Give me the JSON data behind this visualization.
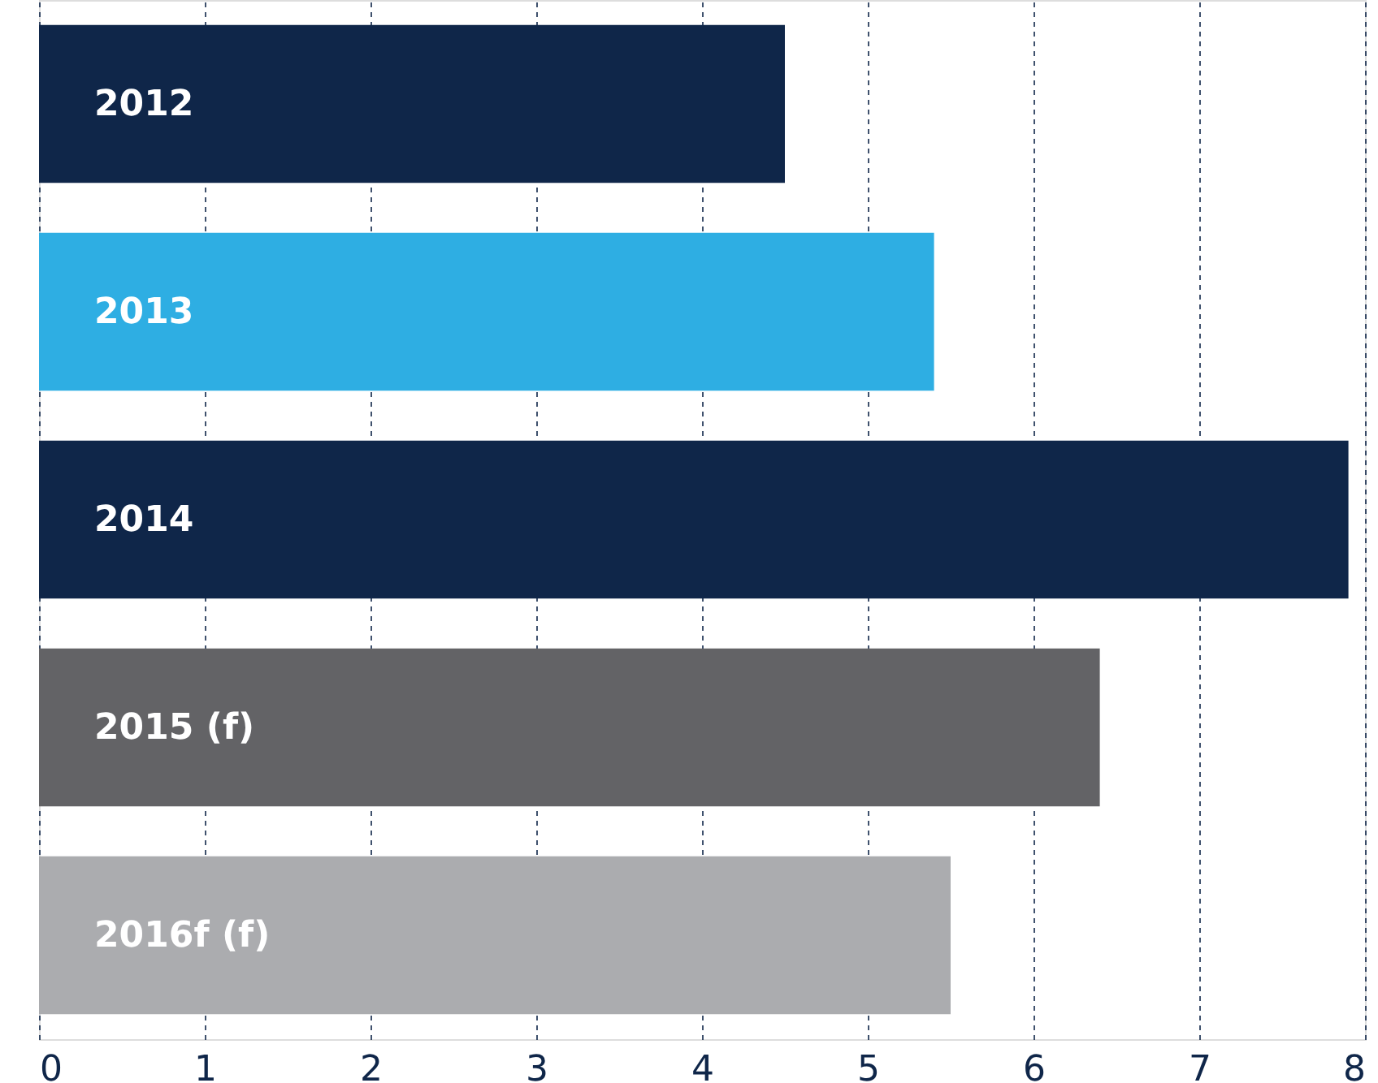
{
  "chart_data": {
    "type": "bar",
    "orientation": "horizontal",
    "categories": [
      "2012",
      "2013",
      "2014",
      "2015 (f)",
      "2016f (f)"
    ],
    "values": [
      4.5,
      5.4,
      7.9,
      6.4,
      5.5
    ],
    "colors": [
      "#0f2649",
      "#2eaee3",
      "#0f2649",
      "#636366",
      "#abacaf"
    ],
    "xlim": [
      0,
      8
    ],
    "xticks": [
      0,
      1,
      2,
      3,
      4,
      5,
      6,
      7,
      8
    ],
    "grid": "x"
  }
}
